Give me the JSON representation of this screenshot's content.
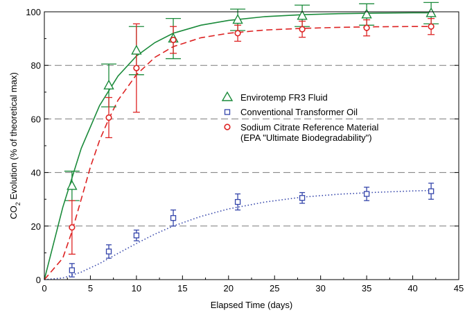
{
  "chart_data": {
    "type": "scatter",
    "xlabel": "Elapsed Time (days)",
    "ylabel": {
      "pre": "CO",
      "sub": "2",
      "post": " Evolution (% of theoretical max)"
    },
    "xlim": [
      0,
      45
    ],
    "ylim": [
      0,
      100
    ],
    "x_ticks": [
      0,
      5,
      10,
      15,
      20,
      25,
      30,
      35,
      40,
      45
    ],
    "y_ticks": [
      0,
      20,
      40,
      60,
      80,
      100
    ],
    "x_tick_labels": [
      "0",
      "5",
      "10",
      "15",
      "20",
      "25",
      "30",
      "35",
      "40",
      "45"
    ],
    "y_tick_labels": [
      "0",
      "20",
      "40",
      "60",
      "80",
      "100"
    ],
    "grid": "horizontal dashed at 20, 40, 60, 80",
    "legend_position": "center-right",
    "series": [
      {
        "name": "Envirotemp FR3 Fluid",
        "marker": "triangle",
        "color": "#1a8a3a",
        "line_style": "solid",
        "x": [
          3,
          7,
          10,
          14,
          21,
          28,
          35,
          42
        ],
        "y": [
          35.0,
          72.5,
          85.5,
          90.0,
          97.0,
          98.5,
          99.0,
          99.5
        ],
        "err": [
          5.5,
          8.0,
          9.0,
          7.5,
          4.0,
          4.0,
          4.0,
          4.0
        ],
        "fit_x": [
          0,
          2,
          4,
          6,
          8,
          10,
          12,
          14,
          17,
          20,
          24,
          28,
          32,
          36,
          40,
          42
        ],
        "fit_y": [
          0,
          27,
          49,
          65,
          76,
          83.5,
          88.5,
          92,
          95,
          96.8,
          98.2,
          98.9,
          99.3,
          99.5,
          99.6,
          99.6
        ]
      },
      {
        "name": "Conventional Transformer Oil",
        "marker": "square",
        "color": "#3344aa",
        "line_style": "dotted",
        "x": [
          3,
          7,
          10,
          14,
          21,
          28,
          35,
          42
        ],
        "y": [
          3.5,
          10.5,
          16.5,
          23.0,
          29.0,
          30.5,
          32.0,
          33.0
        ],
        "err": [
          2.5,
          2.5,
          2.0,
          3.0,
          3.0,
          2.0,
          2.5,
          3.0
        ],
        "fit_x": [
          0,
          2,
          4,
          6,
          8,
          10,
          12,
          14,
          17,
          20,
          24,
          28,
          32,
          36,
          40,
          42
        ],
        "fit_y": [
          0,
          0.6,
          2.8,
          6.0,
          9.8,
          13.5,
          17.0,
          20.0,
          23.6,
          26.4,
          29.0,
          30.8,
          31.9,
          32.6,
          33.1,
          33.3
        ]
      },
      {
        "name": "Sodium Citrate Reference Material",
        "name_line2": "(EPA \"Ultimate Biodegradability\")",
        "marker": "circle",
        "color": "#dd2222",
        "line_style": "dashed",
        "x": [
          3,
          7,
          10,
          14,
          21,
          28,
          35,
          42
        ],
        "y": [
          19.5,
          60.5,
          79.0,
          89.5,
          92.0,
          93.5,
          94.0,
          94.5
        ],
        "err": [
          10.0,
          7.5,
          16.5,
          5.0,
          3.0,
          3.0,
          3.0,
          3.0
        ],
        "fit_x": [
          0,
          2,
          3,
          4,
          5,
          6,
          7,
          8,
          10,
          12,
          14,
          17,
          20,
          24,
          28,
          32,
          36,
          40,
          42
        ],
        "fit_y": [
          0,
          8,
          18,
          30,
          42,
          52,
          60,
          67,
          76.5,
          83,
          87,
          90.3,
          92,
          93.2,
          93.8,
          94.2,
          94.4,
          94.5,
          94.5
        ]
      }
    ]
  }
}
